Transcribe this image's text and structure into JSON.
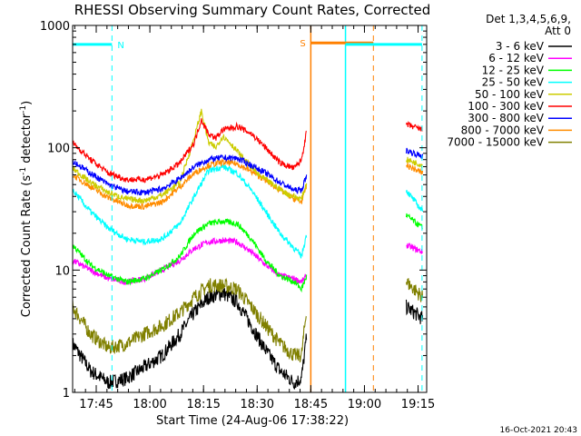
{
  "chart_data": {
    "type": "line",
    "title": "RHESSI Observing Summary Count Rates, Corrected",
    "xlabel": "Start Time (24-Aug-06 17:38:22)",
    "ylabel_main": "Corrected Count Rate (s",
    "ylabel_sup1": "-1",
    "ylabel_mid": " detector",
    "ylabel_sup2": "-1",
    "ylabel_end": ")",
    "y_scale": "log",
    "ylim": [
      1,
      1000
    ],
    "xlim_minutes": [
      0,
      99
    ],
    "x_ticks": [
      {
        "label": "17:45",
        "min": 6.6
      },
      {
        "label": "18:00",
        "min": 21.6
      },
      {
        "label": "18:15",
        "min": 36.6
      },
      {
        "label": "18:30",
        "min": 51.6
      },
      {
        "label": "18:45",
        "min": 66.6
      },
      {
        "label": "19:00",
        "min": 81.6
      },
      {
        "label": "19:15",
        "min": 96.6
      }
    ],
    "y_ticks": [
      {
        "label": "1",
        "value": 1
      },
      {
        "label": "10",
        "value": 10
      },
      {
        "label": "100",
        "value": 100
      },
      {
        "label": "1000",
        "value": 1000
      }
    ],
    "legend": {
      "position": "right",
      "header": [
        "Det 1,3,4,5,6,9,",
        "Att 0"
      ],
      "entries": [
        {
          "label": "3 - 6 keV",
          "color": "#000000"
        },
        {
          "label": "6 - 12 keV",
          "color": "#ff00ff"
        },
        {
          "label": "12 - 25 keV",
          "color": "#00ff00"
        },
        {
          "label": "25 - 50 keV",
          "color": "#00ffff"
        },
        {
          "label": "50 - 100 keV",
          "color": "#cccc00"
        },
        {
          "label": "100 - 300 keV",
          "color": "#ff0000"
        },
        {
          "label": "300 - 800 keV",
          "color": "#0000ff"
        },
        {
          "label": "800 - 7000 keV",
          "color": "#ff8c00"
        },
        {
          "label": "7000 - 15000 keV",
          "color": "#808000"
        }
      ]
    },
    "markers": [
      {
        "label": "N",
        "color": "#00ffff",
        "x_start": 0,
        "x_end": 11,
        "level": 700,
        "dash_x": 11
      },
      {
        "label": "S",
        "color": "#ff8000",
        "x_start": 66.6,
        "x_end": 84.1,
        "level": 720,
        "dash_x": 84.1
      },
      {
        "label": "",
        "color": "#00ffff",
        "x_start": 76.3,
        "x_end": 97.7,
        "level": 700,
        "dash_x": 97.7
      }
    ],
    "boundaries": [
      {
        "x": 66.6,
        "color": "#ff8000"
      },
      {
        "x": 76.3,
        "color": "#00ffff"
      }
    ],
    "segments": [
      {
        "x_start": 0,
        "x_end": 65.5
      },
      {
        "x_start": 93.3,
        "x_end": 97.9
      }
    ],
    "series": [
      {
        "name": "100 - 300 keV",
        "color": "#ff0000",
        "points": [
          [
            0,
            110
          ],
          [
            5,
            80
          ],
          [
            10,
            62
          ],
          [
            15,
            55
          ],
          [
            20,
            55
          ],
          [
            25,
            60
          ],
          [
            30,
            75
          ],
          [
            34,
            110
          ],
          [
            36,
            170
          ],
          [
            38,
            130
          ],
          [
            40,
            120
          ],
          [
            42,
            140
          ],
          [
            46,
            150
          ],
          [
            50,
            130
          ],
          [
            54,
            100
          ],
          [
            58,
            75
          ],
          [
            62,
            68
          ],
          [
            64,
            80
          ],
          [
            65.5,
            140
          ],
          [
            93.3,
            155
          ],
          [
            97.9,
            140
          ]
        ]
      },
      {
        "name": "300 - 800 keV",
        "color": "#0000ff",
        "points": [
          [
            0,
            78
          ],
          [
            5,
            62
          ],
          [
            10,
            50
          ],
          [
            15,
            44
          ],
          [
            20,
            43
          ],
          [
            25,
            46
          ],
          [
            30,
            56
          ],
          [
            34,
            70
          ],
          [
            38,
            80
          ],
          [
            42,
            83
          ],
          [
            46,
            82
          ],
          [
            50,
            72
          ],
          [
            54,
            62
          ],
          [
            58,
            52
          ],
          [
            62,
            45
          ],
          [
            64,
            45
          ],
          [
            65.5,
            60
          ],
          [
            93.3,
            95
          ],
          [
            97.9,
            85
          ]
        ]
      },
      {
        "name": "50 - 100 keV",
        "color": "#cccc00",
        "points": [
          [
            0,
            68
          ],
          [
            5,
            52
          ],
          [
            10,
            43
          ],
          [
            15,
            38
          ],
          [
            20,
            37
          ],
          [
            25,
            41
          ],
          [
            30,
            52
          ],
          [
            34,
            120
          ],
          [
            36,
            200
          ],
          [
            38,
            110
          ],
          [
            40,
            100
          ],
          [
            42,
            125
          ],
          [
            44,
            110
          ],
          [
            48,
            80
          ],
          [
            52,
            60
          ],
          [
            56,
            50
          ],
          [
            60,
            42
          ],
          [
            64,
            38
          ],
          [
            65.5,
            52
          ],
          [
            93.3,
            80
          ],
          [
            97.9,
            72
          ]
        ]
      },
      {
        "name": "800 - 7000 keV",
        "color": "#ff8c00",
        "points": [
          [
            0,
            60
          ],
          [
            5,
            48
          ],
          [
            10,
            39
          ],
          [
            15,
            34
          ],
          [
            20,
            33
          ],
          [
            25,
            36
          ],
          [
            30,
            48
          ],
          [
            34,
            62
          ],
          [
            38,
            72
          ],
          [
            42,
            76
          ],
          [
            46,
            74
          ],
          [
            50,
            64
          ],
          [
            54,
            54
          ],
          [
            58,
            45
          ],
          [
            62,
            38
          ],
          [
            64,
            36
          ],
          [
            65.5,
            50
          ],
          [
            93.3,
            72
          ],
          [
            97.9,
            62
          ]
        ]
      },
      {
        "name": "25 - 50 keV",
        "color": "#00ffff",
        "points": [
          [
            0,
            45
          ],
          [
            5,
            30
          ],
          [
            10,
            22
          ],
          [
            15,
            18
          ],
          [
            20,
            17
          ],
          [
            25,
            18
          ],
          [
            30,
            24
          ],
          [
            34,
            40
          ],
          [
            38,
            65
          ],
          [
            42,
            70
          ],
          [
            46,
            62
          ],
          [
            50,
            45
          ],
          [
            54,
            30
          ],
          [
            58,
            20
          ],
          [
            62,
            15
          ],
          [
            64,
            13
          ],
          [
            65.5,
            20
          ],
          [
            93.3,
            45
          ],
          [
            97.9,
            30
          ]
        ]
      },
      {
        "name": "12 - 25 keV",
        "color": "#00ff00",
        "points": [
          [
            0,
            16
          ],
          [
            5,
            11
          ],
          [
            10,
            9
          ],
          [
            15,
            8
          ],
          [
            20,
            8.5
          ],
          [
            25,
            10
          ],
          [
            30,
            13
          ],
          [
            34,
            20
          ],
          [
            38,
            24
          ],
          [
            42,
            25
          ],
          [
            46,
            24
          ],
          [
            50,
            18
          ],
          [
            54,
            12
          ],
          [
            58,
            9
          ],
          [
            62,
            8
          ],
          [
            64,
            7
          ],
          [
            65.5,
            9
          ],
          [
            93.3,
            28
          ],
          [
            97.9,
            22
          ]
        ]
      },
      {
        "name": "6 - 12 keV",
        "color": "#ff00ff",
        "points": [
          [
            0,
            12
          ],
          [
            5,
            10
          ],
          [
            10,
            8.5
          ],
          [
            15,
            8
          ],
          [
            20,
            8.5
          ],
          [
            25,
            10
          ],
          [
            30,
            12
          ],
          [
            34,
            15
          ],
          [
            38,
            17
          ],
          [
            42,
            17.5
          ],
          [
            46,
            17
          ],
          [
            50,
            14
          ],
          [
            54,
            11
          ],
          [
            58,
            9
          ],
          [
            62,
            8.5
          ],
          [
            64,
            8
          ],
          [
            65.5,
            9
          ],
          [
            93.3,
            16
          ],
          [
            97.9,
            14
          ]
        ]
      },
      {
        "name": "7000 - 15000 keV",
        "color": "#808000",
        "points": [
          [
            0,
            5
          ],
          [
            5,
            3
          ],
          [
            10,
            2.3
          ],
          [
            15,
            2.5
          ],
          [
            20,
            3
          ],
          [
            25,
            3.5
          ],
          [
            30,
            4.5
          ],
          [
            34,
            6
          ],
          [
            38,
            7.5
          ],
          [
            42,
            7.5
          ],
          [
            46,
            7
          ],
          [
            50,
            5
          ],
          [
            54,
            3.5
          ],
          [
            58,
            2.5
          ],
          [
            62,
            2
          ],
          [
            64,
            2
          ],
          [
            65.5,
            5
          ],
          [
            93.3,
            8
          ],
          [
            97.9,
            6
          ]
        ]
      },
      {
        "name": "3 - 6 keV",
        "color": "#000000",
        "points": [
          [
            0,
            2.5
          ],
          [
            5,
            1.5
          ],
          [
            10,
            1.2
          ],
          [
            15,
            1.3
          ],
          [
            20,
            1.6
          ],
          [
            25,
            2
          ],
          [
            30,
            3
          ],
          [
            34,
            4.5
          ],
          [
            38,
            6
          ],
          [
            42,
            6.5
          ],
          [
            46,
            5.5
          ],
          [
            50,
            3.5
          ],
          [
            54,
            2.2
          ],
          [
            58,
            1.5
          ],
          [
            62,
            1.2
          ],
          [
            64,
            1.3
          ],
          [
            65.5,
            3
          ],
          [
            93.3,
            5
          ],
          [
            97.9,
            4
          ]
        ]
      }
    ],
    "footer_date": "16-Oct-2021 20:43"
  }
}
